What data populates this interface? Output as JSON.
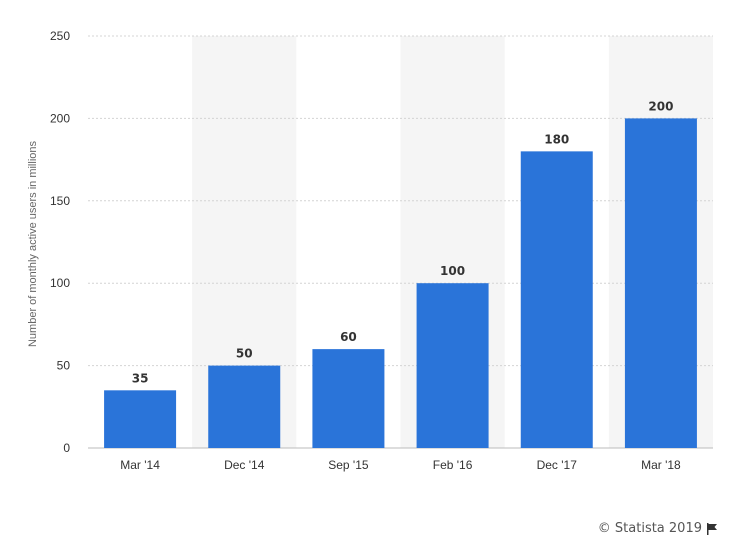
{
  "chart_data": {
    "type": "bar",
    "categories": [
      "Mar '14",
      "Dec '14",
      "Sep '15",
      "Feb '16",
      "Dec '17",
      "Mar '18"
    ],
    "values": [
      35,
      50,
      60,
      100,
      180,
      200
    ],
    "data_labels": [
      "35",
      "50",
      "60",
      "100",
      "180",
      "200"
    ],
    "title": "",
    "xlabel": "",
    "ylabel": "Number of monthly active users in millions",
    "ylim": [
      0,
      250
    ],
    "yticks": [
      0,
      50,
      100,
      150,
      200,
      250
    ],
    "ytick_labels": [
      "0",
      "50",
      "100",
      "150",
      "200",
      "250"
    ],
    "grid": true,
    "legend": "none",
    "bar_color": "#2a74d9",
    "alternating_band_color": "#f5f5f5"
  },
  "footer": {
    "credit": "© Statista 2019",
    "icon": "flag-icon"
  }
}
